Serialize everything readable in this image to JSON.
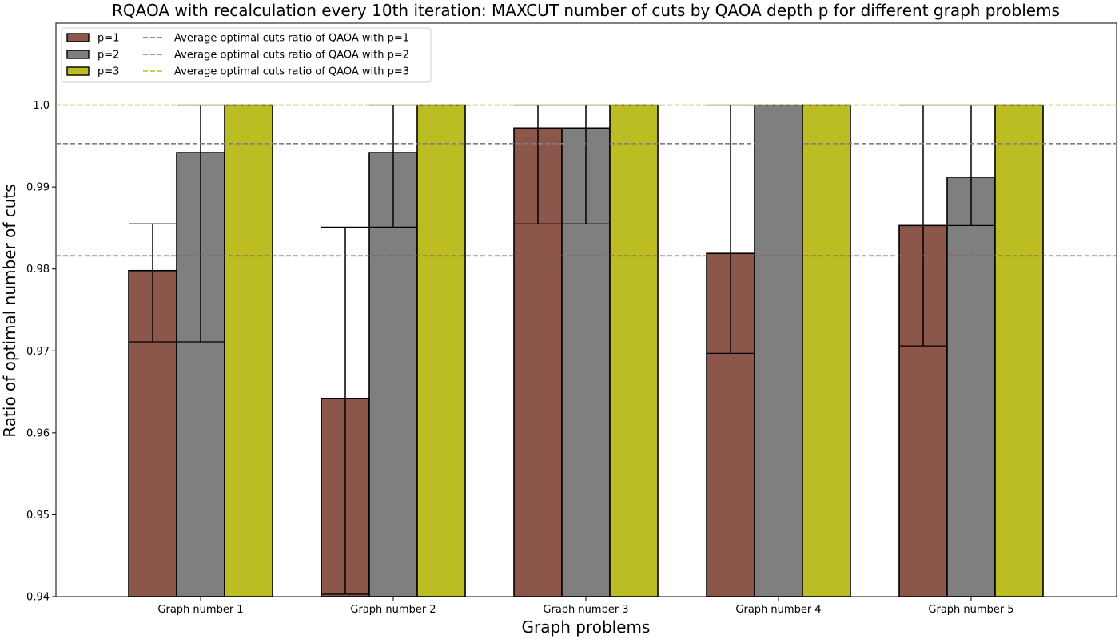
{
  "chart_data": {
    "type": "bar",
    "title": "RQAOA with recalculation every 10th iteration: MAXCUT number of cuts by QAOA depth p for different graph problems",
    "xlabel": "Graph problems",
    "ylabel": "Ratio of optimal number of cuts",
    "ylim": [
      0.94,
      1.01
    ],
    "yticks": [
      "0.94",
      "0.95",
      "0.96",
      "0.97",
      "0.98",
      "0.99",
      "1.0"
    ],
    "categories": [
      "Graph number 1",
      "Graph number 2",
      "Graph number 3",
      "Graph number 4",
      "Graph number 5"
    ],
    "series": [
      {
        "name": "p=1",
        "color": "#8c564b",
        "values": [
          0.9798,
          0.9642,
          0.9972,
          0.9819,
          0.9853
        ],
        "error_low": [
          0.9711,
          0.9403,
          0.9855,
          0.9697,
          0.9706
        ],
        "error_high": [
          0.9855,
          0.9851,
          1.0,
          1.0,
          1.0
        ]
      },
      {
        "name": "p=2",
        "color": "#7f7f7f",
        "values": [
          0.9942,
          0.9942,
          0.9972,
          1.0,
          0.9912
        ],
        "error_low": [
          0.9711,
          0.9851,
          0.9855,
          1.0,
          0.9853
        ],
        "error_high": [
          1.0,
          1.0,
          1.0,
          1.0,
          1.0
        ]
      },
      {
        "name": "p=3",
        "color": "#bcbd22",
        "values": [
          1.0,
          1.0,
          1.0,
          1.0,
          1.0
        ],
        "error_low": [
          1.0,
          1.0,
          1.0,
          1.0,
          1.0
        ],
        "error_high": [
          1.0,
          1.0,
          1.0,
          1.0,
          1.0
        ]
      }
    ],
    "average_lines": [
      {
        "name": "Average optimal cuts ratio of QAOA with p=1",
        "value": 0.9816,
        "color": "#8c564b"
      },
      {
        "name": "Average optimal cuts ratio of QAOA with p=2",
        "value": 0.9953,
        "color": "#7f7f7f"
      },
      {
        "name": "Average optimal cuts ratio of QAOA with p=3",
        "value": 1.0,
        "color": "#bcbd22"
      }
    ],
    "legend_position": "top-left",
    "grid": false
  }
}
